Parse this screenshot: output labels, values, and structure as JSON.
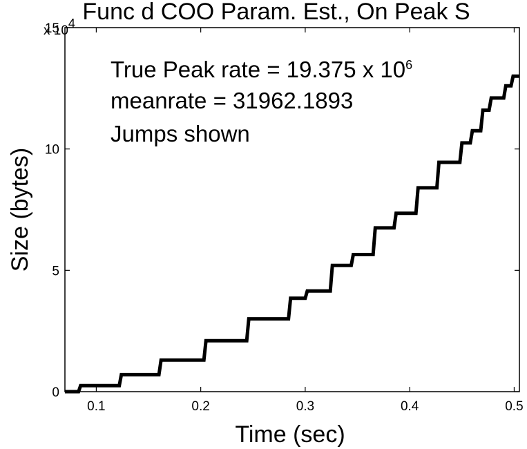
{
  "chart_data": {
    "type": "line",
    "title": "Func d COO Param. Est., On Peak S",
    "xlabel": "Time (sec)",
    "ylabel": "Size (bytes)",
    "y_multiplier_label": "x 10",
    "y_multiplier_exponent": "4",
    "xlim": [
      0.07,
      0.505
    ],
    "ylim": [
      0,
      150000
    ],
    "x_ticks": [
      0.1,
      0.2,
      0.3,
      0.4,
      0.5
    ],
    "x_tick_labels": [
      "0.1",
      "0.2",
      "0.3",
      "0.4",
      "0.5"
    ],
    "y_ticks": [
      0,
      50000,
      100000,
      150000
    ],
    "y_tick_labels": [
      "0",
      "5",
      "10",
      "15"
    ],
    "grid": false,
    "annotations": {
      "line1": "True Peak rate = 19.375 x 10",
      "line1_exponent": "6",
      "line2": "meanrate = 31962.1893",
      "line3": "Jumps shown"
    },
    "series": [
      {
        "style": "step",
        "color": "#000000",
        "x": [
          0.07,
          0.083,
          0.085,
          0.122,
          0.124,
          0.16,
          0.162,
          0.203,
          0.205,
          0.244,
          0.246,
          0.284,
          0.286,
          0.3,
          0.302,
          0.324,
          0.326,
          0.344,
          0.346,
          0.365,
          0.367,
          0.385,
          0.387,
          0.406,
          0.408,
          0.426,
          0.428,
          0.448,
          0.45,
          0.458,
          0.46,
          0.468,
          0.47,
          0.476,
          0.478,
          0.49,
          0.492,
          0.497,
          0.499,
          0.505
        ],
        "y": [
          0,
          0,
          2500,
          2500,
          7000,
          7000,
          13000,
          13000,
          21000,
          21000,
          30000,
          30000,
          38500,
          38500,
          41500,
          41500,
          52000,
          52000,
          56500,
          56500,
          67500,
          67500,
          73500,
          73500,
          84000,
          84000,
          94500,
          94500,
          102500,
          102500,
          107500,
          107500,
          116000,
          116000,
          121000,
          121000,
          126000,
          126000,
          130000,
          130000
        ]
      }
    ]
  }
}
